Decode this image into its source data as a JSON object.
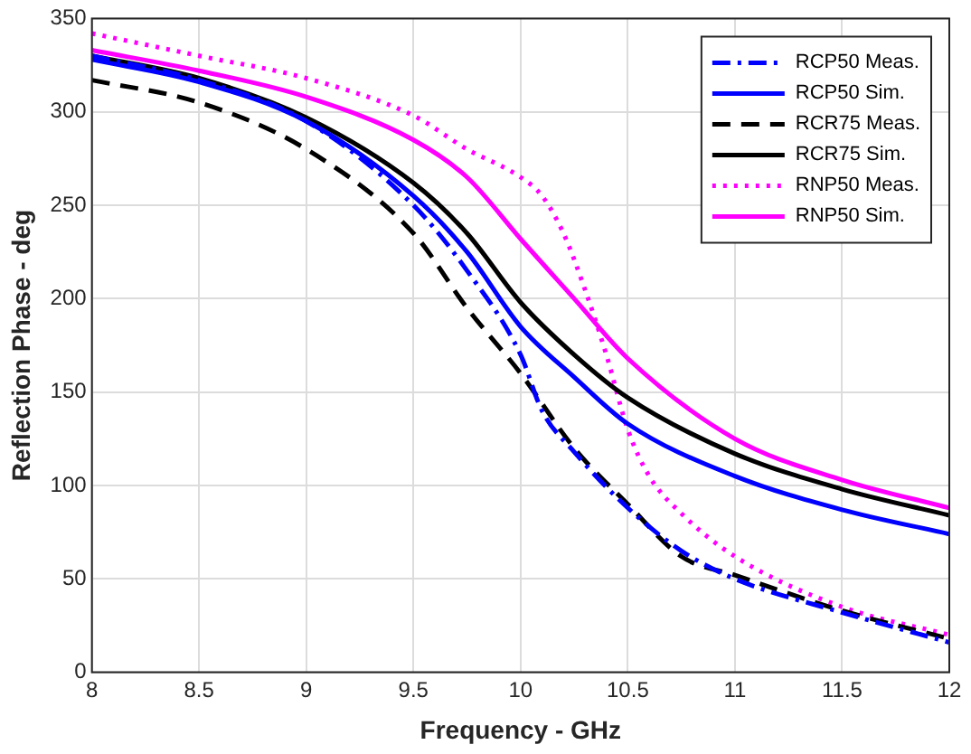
{
  "chart_data": {
    "type": "line",
    "xlabel": "Frequency - GHz",
    "ylabel": "Reflection Phase - deg",
    "xlim": [
      8,
      12
    ],
    "xticks": [
      8,
      8.5,
      9,
      9.5,
      10,
      10.5,
      11,
      11.5,
      12
    ],
    "ylim": [
      0,
      350
    ],
    "yticks": [
      0,
      50,
      100,
      150,
      200,
      250,
      300,
      350
    ],
    "grid": true,
    "legend": "top right",
    "marker": "none",
    "series": [
      {
        "name": "RCP50 Meas.",
        "color": "#0000ff",
        "line_style": "dashdot",
        "x": [
          8,
          8.5,
          9,
          9.5,
          9.75,
          10,
          10.1,
          10.25,
          10.5,
          10.75,
          11,
          11.5,
          12
        ],
        "values": [
          330,
          317,
          295,
          250,
          215,
          170,
          140,
          118,
          88,
          65,
          50,
          32,
          16
        ]
      },
      {
        "name": "RCP50 Sim.",
        "color": "#0000ff",
        "line_style": "solid",
        "x": [
          8,
          8.5,
          9,
          9.5,
          9.75,
          10,
          10.25,
          10.5,
          11,
          11.5,
          12
        ],
        "values": [
          328,
          316,
          295,
          255,
          225,
          185,
          158,
          133,
          105,
          87,
          74
        ]
      },
      {
        "name": "RCR75 Meas.",
        "color": "#000000",
        "line_style": "dashed",
        "x": [
          8,
          8.5,
          9,
          9.5,
          9.75,
          10,
          10.25,
          10.5,
          10.75,
          11,
          11.5,
          12
        ],
        "values": [
          317,
          305,
          280,
          235,
          195,
          160,
          120,
          90,
          62,
          52,
          33,
          18
        ]
      },
      {
        "name": "RCR75 Sim.",
        "color": "#000000",
        "line_style": "solid",
        "x": [
          8,
          8.5,
          9,
          9.5,
          9.75,
          10,
          10.25,
          10.5,
          11,
          11.5,
          12
        ],
        "values": [
          330,
          318,
          297,
          262,
          235,
          198,
          170,
          147,
          117,
          98,
          84
        ]
      },
      {
        "name": "RNP50 Meas.",
        "color": "#ff00ff",
        "line_style": "dotted",
        "x": [
          8,
          8.5,
          9,
          9.5,
          9.75,
          10,
          10.1,
          10.2,
          10.3,
          10.4,
          10.5,
          10.6,
          10.75,
          11,
          11.5,
          12
        ],
        "values": [
          342,
          330,
          318,
          298,
          280,
          265,
          255,
          235,
          205,
          170,
          130,
          105,
          85,
          62,
          35,
          20
        ]
      },
      {
        "name": "RNP50 Sim.",
        "color": "#ff00ff",
        "line_style": "solid",
        "x": [
          8,
          8.5,
          9,
          9.5,
          9.75,
          10,
          10.25,
          10.5,
          11,
          11.5,
          12
        ],
        "values": [
          333,
          322,
          308,
          285,
          265,
          232,
          200,
          168,
          125,
          103,
          88
        ]
      }
    ]
  }
}
